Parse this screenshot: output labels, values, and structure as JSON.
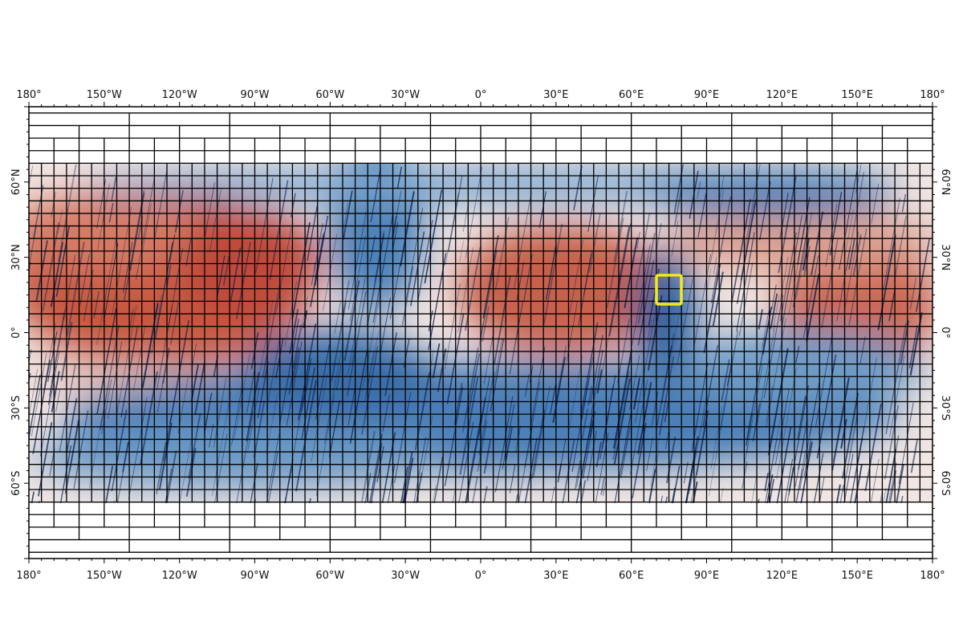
{
  "map": {
    "top_labels": [
      "180°",
      "150°W",
      "120°W",
      "90°W",
      "60°W",
      "30°W",
      "0°",
      "30°E",
      "60°E",
      "90°E",
      "120°E",
      "150°E",
      "180°"
    ],
    "bottom_labels": [
      "180°",
      "150°W",
      "120°W",
      "90°W",
      "60°W",
      "30°W",
      "0°",
      "30°E",
      "60°E",
      "90°E",
      "120°E",
      "150°E",
      "180°"
    ],
    "left_labels": [
      "60°N",
      "30°N",
      "0°",
      "30°S",
      "60°S"
    ],
    "right_labels": [
      "60°N",
      "30°N",
      "0°",
      "30°S",
      "60°S"
    ]
  }
}
